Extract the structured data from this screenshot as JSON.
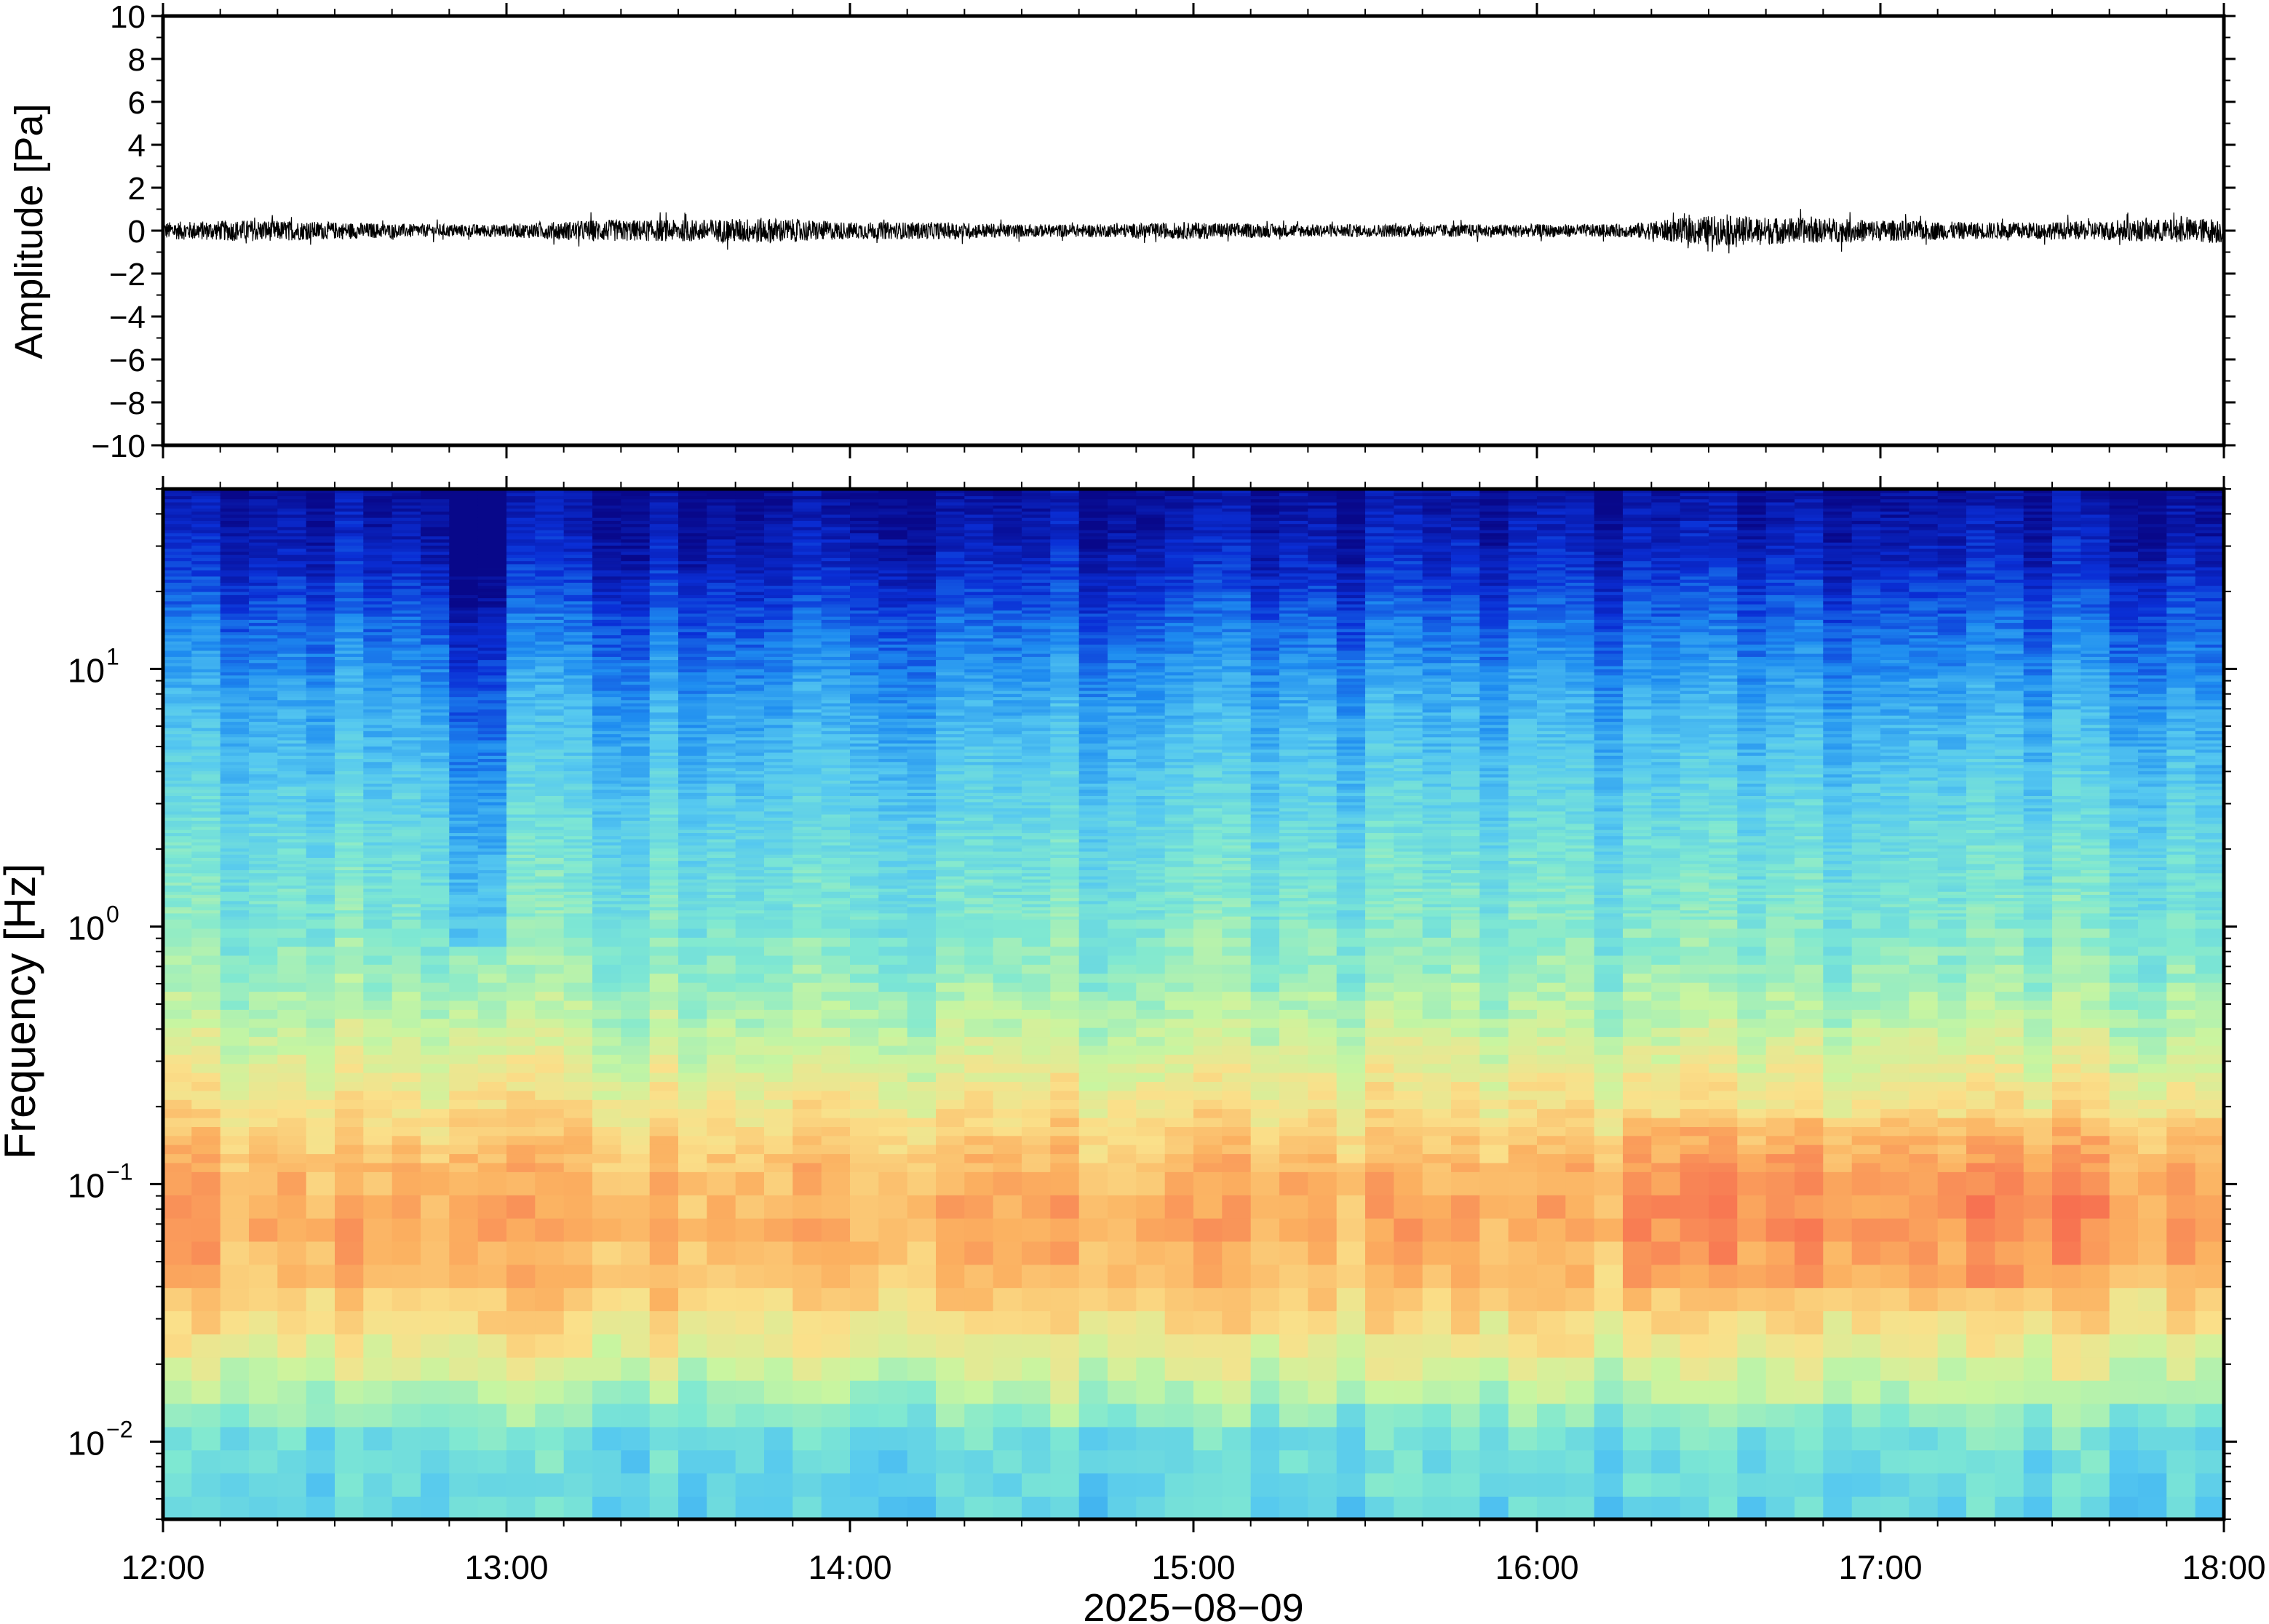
{
  "chart_data": [
    {
      "type": "line",
      "title": "",
      "xlabel": "",
      "ylabel": "Amplitude [Pa]",
      "ylim": [
        -10,
        10
      ],
      "y_ticks": [
        10,
        8,
        6,
        4,
        2,
        0,
        -2,
        -4,
        -6,
        -8,
        -10
      ],
      "y_tick_labels": [
        "10",
        "8",
        "6",
        "4",
        "2",
        "0",
        "−2",
        "−4",
        "−6",
        "−8",
        "−10"
      ],
      "x_range": [
        "12:00",
        "18:00"
      ],
      "series": [
        {
          "color": "#000000",
          "x": [
            "12:00",
            "12:15",
            "12:30",
            "12:45",
            "13:00",
            "13:15",
            "13:30",
            "13:45",
            "14:00",
            "14:15",
            "14:30",
            "14:45",
            "15:00",
            "15:15",
            "15:30",
            "15:45",
            "16:00",
            "16:15",
            "16:30",
            "16:45",
            "17:00",
            "17:15",
            "17:30",
            "17:45",
            "18:00"
          ],
          "envelope": [
            0.4,
            0.5,
            0.4,
            0.3,
            0.3,
            0.5,
            0.5,
            0.6,
            0.4,
            0.4,
            0.3,
            0.3,
            0.4,
            0.3,
            0.3,
            0.3,
            0.3,
            0.3,
            0.7,
            0.6,
            0.5,
            0.4,
            0.4,
            0.5,
            0.6
          ]
        }
      ],
      "grid": false
    },
    {
      "type": "heatmap",
      "title": "",
      "xlabel": "2025−08−09",
      "ylabel": "Frequency [Hz]",
      "y_scale": "log",
      "ylim": [
        0.005,
        50
      ],
      "y_ticks": [
        0.01,
        0.1,
        1,
        10
      ],
      "y_tick_labels": [
        {
          "base": "10",
          "exp": "−2"
        },
        {
          "base": "10",
          "exp": "−1"
        },
        {
          "base": "10",
          "exp": "0"
        },
        {
          "base": "10",
          "exp": "1"
        }
      ],
      "x_ticks": [
        "12:00",
        "13:00",
        "14:00",
        "15:00",
        "16:00",
        "17:00",
        "18:00"
      ],
      "x_range": [
        "12:00",
        "18:00"
      ],
      "colormap": "jet (low = light blue / cyan, high = red)",
      "colormap_stops": [
        "#08088a",
        "#0a2fd6",
        "#1e8cf0",
        "#55c8f0",
        "#7fe8d2",
        "#c8f5a0",
        "#fae08a",
        "#fbb060",
        "#f77050"
      ],
      "features": [
        {
          "description": "strongest energy (red) between 0.04 and 0.15 Hz across the full interval, most intense 16:15–18:00"
        },
        {
          "description": "quieter (dark blue) narrow column near 12:55 extending down to about 0.8 Hz"
        },
        {
          "description": "dark blue above about 20 Hz throughout"
        },
        {
          "description": "light blue/cyan below about 0.015 Hz"
        }
      ],
      "level_by_log_frequency": {
        "frequency_hz": [
          0.005,
          0.01,
          0.015,
          0.025,
          0.04,
          0.07,
          0.12,
          0.2,
          0.35,
          0.6,
          1,
          2,
          4,
          8,
          15,
          25,
          50
        ],
        "level": [
          0.42,
          0.45,
          0.58,
          0.72,
          0.82,
          0.88,
          0.84,
          0.74,
          0.64,
          0.55,
          0.5,
          0.45,
          0.38,
          0.3,
          0.2,
          0.1,
          0.02
        ]
      }
    }
  ]
}
